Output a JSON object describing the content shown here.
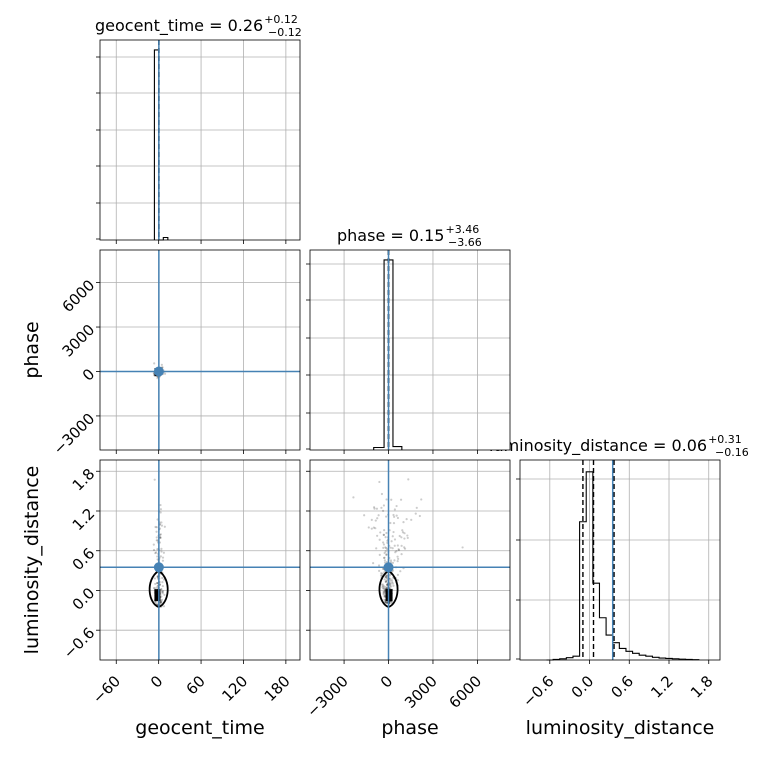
{
  "chart_data": {
    "type": "corner",
    "parameters": [
      "geocent_time",
      "phase",
      "luminosity_distance"
    ],
    "axis_labels": {
      "geocent_time": "geocent_time",
      "phase": "phase",
      "luminosity_distance": "luminosity_distance"
    },
    "titles": {
      "geocent_time": {
        "name": "geocent_time",
        "median": "0.26",
        "plus": "+0.12",
        "minus": "−0.12"
      },
      "phase": {
        "name": "phase",
        "median": "0.15",
        "plus": "+3.46",
        "minus": "−3.66"
      },
      "luminosity_distance": {
        "name": "luminosity_distance",
        "median": "0.06",
        "plus": "+0.31",
        "minus": "−0.16"
      }
    },
    "ranges": {
      "geocent_time": [
        -83,
        200
      ],
      "phase": [
        -5300,
        8200
      ],
      "luminosity_distance": [
        -1.05,
        1.97
      ]
    },
    "ticks": {
      "geocent_time": {
        "values": [
          -60,
          0,
          60,
          120,
          180
        ],
        "labels": [
          "−60",
          "0",
          "60",
          "120",
          "180"
        ]
      },
      "phase_x": {
        "values": [
          -3000,
          0,
          3000,
          6000
        ],
        "labels": [
          "−3000",
          "0",
          "3000",
          "6000"
        ]
      },
      "phase_y": {
        "values": [
          -3000,
          0,
          3000,
          6000
        ],
        "labels": [
          "−3000",
          "0",
          "3000",
          "6000"
        ]
      },
      "luminosity_distance": {
        "values": [
          -0.6,
          0.0,
          0.6,
          1.2,
          1.8
        ],
        "labels": [
          "−0.6",
          "0.0",
          "0.6",
          "1.2",
          "1.8"
        ]
      }
    },
    "truths": {
      "geocent_time": 0.3,
      "phase": 0.0,
      "luminosity_distance": 0.35
    },
    "truth_color": "#4682b4",
    "histograms": {
      "geocent_time": {
        "edges": [
          -6,
          0.3,
          6.6,
          13
        ],
        "counts": [
          0.99,
          0.0,
          0.013
        ],
        "quantiles": [
          0.14,
          0.26,
          0.38
        ]
      },
      "phase": {
        "edges": [
          -1000,
          -300,
          300,
          900
        ],
        "counts": [
          0.013,
          0.99,
          0.018
        ],
        "quantiles": [
          -3.51,
          0.15,
          3.61
        ]
      },
      "luminosity_distance": {
        "edges": [
          -0.65,
          -0.55,
          -0.45,
          -0.35,
          -0.25,
          -0.15,
          -0.05,
          0.05,
          0.15,
          0.25,
          0.35,
          0.45,
          0.55,
          0.65,
          0.75,
          0.85,
          0.95,
          1.05,
          1.15,
          1.25,
          1.35,
          1.45,
          1.55,
          1.65
        ],
        "counts": [
          0.0,
          0.003,
          0.006,
          0.012,
          0.02,
          0.72,
          0.98,
          0.4,
          0.22,
          0.13,
          0.09,
          0.06,
          0.045,
          0.035,
          0.025,
          0.02,
          0.014,
          0.01,
          0.008,
          0.006,
          0.004,
          0.003,
          0.002
        ],
        "quantiles": [
          -0.1,
          0.06,
          0.37
        ]
      }
    },
    "grid": true
  }
}
